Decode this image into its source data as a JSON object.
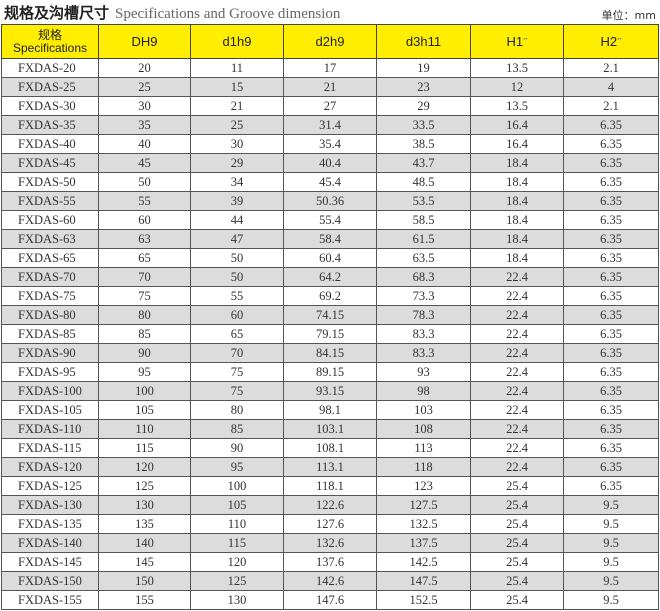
{
  "title_cn": "规格及沟槽尺寸",
  "title_en": "Specifications and Groove dimension",
  "unit": "单位：mm",
  "headers": {
    "spec_cn": "规格",
    "spec_en": "Specifications",
    "cols": [
      "DH9",
      "d1h9",
      "d2h9",
      "d3h11",
      "H1",
      "H2"
    ]
  },
  "rows": [
    [
      "FXDAS-20",
      "20",
      "11",
      "17",
      "19",
      "13.5",
      "2.1"
    ],
    [
      "FXDAS-25",
      "25",
      "15",
      "21",
      "23",
      "12",
      "4"
    ],
    [
      "FXDAS-30",
      "30",
      "21",
      "27",
      "29",
      "13.5",
      "2.1"
    ],
    [
      "FXDAS-35",
      "35",
      "25",
      "31.4",
      "33.5",
      "16.4",
      "6.35"
    ],
    [
      "FXDAS-40",
      "40",
      "30",
      "35.4",
      "38.5",
      "16.4",
      "6.35"
    ],
    [
      "FXDAS-45",
      "45",
      "29",
      "40.4",
      "43.7",
      "18.4",
      "6.35"
    ],
    [
      "FXDAS-50",
      "50",
      "34",
      "45.4",
      "48.5",
      "18.4",
      "6.35"
    ],
    [
      "FXDAS-55",
      "55",
      "39",
      "50.36",
      "53.5",
      "18.4",
      "6.35"
    ],
    [
      "FXDAS-60",
      "60",
      "44",
      "55.4",
      "58.5",
      "18.4",
      "6.35"
    ],
    [
      "FXDAS-63",
      "63",
      "47",
      "58.4",
      "61.5",
      "18.4",
      "6.35"
    ],
    [
      "FXDAS-65",
      "65",
      "50",
      "60.4",
      "63.5",
      "18.4",
      "6.35"
    ],
    [
      "FXDAS-70",
      "70",
      "50",
      "64.2",
      "68.3",
      "22.4",
      "6.35"
    ],
    [
      "FXDAS-75",
      "75",
      "55",
      "69.2",
      "73.3",
      "22.4",
      "6.35"
    ],
    [
      "FXDAS-80",
      "80",
      "60",
      "74.15",
      "78.3",
      "22.4",
      "6.35"
    ],
    [
      "FXDAS-85",
      "85",
      "65",
      "79.15",
      "83.3",
      "22.4",
      "6.35"
    ],
    [
      "FXDAS-90",
      "90",
      "70",
      "84.15",
      "83.3",
      "22.4",
      "6.35"
    ],
    [
      "FXDAS-95",
      "95",
      "75",
      "89.15",
      "93",
      "22.4",
      "6.35"
    ],
    [
      "FXDAS-100",
      "100",
      "75",
      "93.15",
      "98",
      "22.4",
      "6.35"
    ],
    [
      "FXDAS-105",
      "105",
      "80",
      "98.1",
      "103",
      "22.4",
      "6.35"
    ],
    [
      "FXDAS-110",
      "110",
      "85",
      "103.1",
      "108",
      "22.4",
      "6.35"
    ],
    [
      "FXDAS-115",
      "115",
      "90",
      "108.1",
      "113",
      "22.4",
      "6.35"
    ],
    [
      "FXDAS-120",
      "120",
      "95",
      "113.1",
      "118",
      "22.4",
      "6.35"
    ],
    [
      "FXDAS-125",
      "125",
      "100",
      "118.1",
      "123",
      "25.4",
      "6.35"
    ],
    [
      "FXDAS-130",
      "130",
      "105",
      "122.6",
      "127.5",
      "25.4",
      "9.5"
    ],
    [
      "FXDAS-135",
      "135",
      "110",
      "127.6",
      "132.5",
      "25.4",
      "9.5"
    ],
    [
      "FXDAS-140",
      "140",
      "115",
      "132.6",
      "137.5",
      "25.4",
      "9.5"
    ],
    [
      "FXDAS-145",
      "145",
      "120",
      "137.6",
      "142.5",
      "25.4",
      "9.5"
    ],
    [
      "FXDAS-150",
      "150",
      "125",
      "142.6",
      "147.5",
      "25.4",
      "9.5"
    ],
    [
      "FXDAS-155",
      "155",
      "130",
      "147.6",
      "152.5",
      "25.4",
      "9.5"
    ]
  ],
  "colors": {
    "header_bg": "#ffee00",
    "alt_row": "#dcdcdc"
  }
}
